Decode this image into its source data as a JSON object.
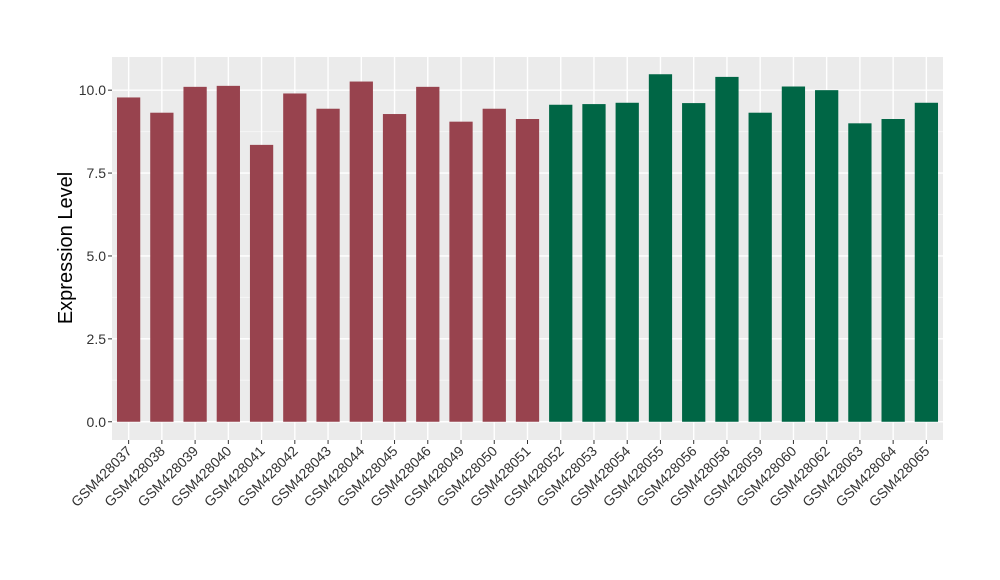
{
  "chart_data": {
    "type": "bar",
    "title": "",
    "xlabel": "",
    "ylabel": "Expression Level",
    "ylim": [
      -0.55,
      11.0
    ],
    "yticks": [
      0.0,
      2.5,
      5.0,
      7.5,
      10.0
    ],
    "ytick_labels": [
      "0.0",
      "2.5",
      "5.0",
      "7.5",
      "10.0"
    ],
    "grid": true,
    "legend": "none",
    "categories": [
      "GSM428037",
      "GSM428038",
      "GSM428039",
      "GSM428040",
      "GSM428041",
      "GSM428042",
      "GSM428043",
      "GSM428044",
      "GSM428045",
      "GSM428046",
      "GSM428049",
      "GSM428050",
      "GSM428051",
      "GSM428052",
      "GSM428053",
      "GSM428054",
      "GSM428055",
      "GSM428056",
      "GSM428058",
      "GSM428059",
      "GSM428060",
      "GSM428062",
      "GSM428063",
      "GSM428064",
      "GSM428065"
    ],
    "values": [
      9.78,
      9.32,
      10.1,
      10.13,
      8.35,
      9.9,
      9.44,
      10.26,
      9.28,
      10.1,
      9.05,
      9.44,
      9.13,
      9.56,
      9.58,
      9.62,
      10.48,
      9.61,
      10.4,
      9.32,
      10.11,
      10.0,
      9.0,
      9.13,
      9.62
    ],
    "groups": [
      "a",
      "a",
      "a",
      "a",
      "a",
      "a",
      "a",
      "a",
      "a",
      "a",
      "a",
      "a",
      "a",
      "b",
      "b",
      "b",
      "b",
      "b",
      "b",
      "b",
      "b",
      "b",
      "b",
      "b",
      "b"
    ],
    "group_colors": {
      "a": "#98434e",
      "b": "#006645"
    },
    "panel_background": "#ebebeb",
    "grid_major_color": "#ffffff",
    "grid_minor_color": "#f5f5f5"
  }
}
